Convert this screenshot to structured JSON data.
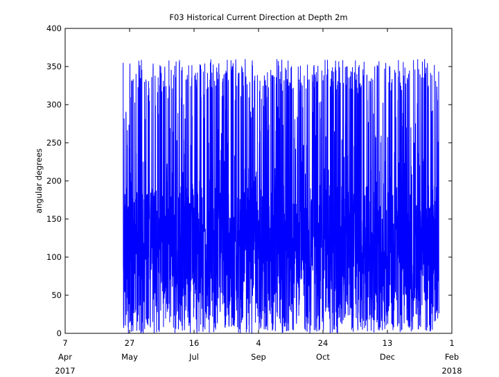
{
  "chart_data": {
    "type": "line",
    "title": "F03 Historical Current Direction at Depth 2m",
    "xlabel": "",
    "ylabel": "angular degrees",
    "ylim": [
      0,
      400
    ],
    "yticks": [
      0,
      50,
      100,
      150,
      200,
      250,
      300,
      350,
      400
    ],
    "x_range": [
      "2017-04-07",
      "2018-02-01"
    ],
    "x_ticks": [
      {
        "date": "2017-04-07",
        "day": "7",
        "month": "Apr",
        "year": "2017"
      },
      {
        "date": "2017-05-27",
        "day": "27",
        "month": "May",
        "year": ""
      },
      {
        "date": "2017-07-16",
        "day": "16",
        "month": "Jul",
        "year": ""
      },
      {
        "date": "2017-09-04",
        "day": "4",
        "month": "Sep",
        "year": ""
      },
      {
        "date": "2017-10-24",
        "day": "24",
        "month": "Oct",
        "year": ""
      },
      {
        "date": "2017-12-13",
        "day": "13",
        "month": "Dec",
        "year": ""
      },
      {
        "date": "2018-02-01",
        "day": "1",
        "month": "Feb",
        "year": "2018"
      }
    ],
    "grid": false,
    "series": [
      {
        "color": "#0000ff",
        "data_start": "2017-05-22",
        "data_end": "2018-01-22",
        "value_range": [
          0,
          360
        ],
        "core_band": [
          15,
          195
        ],
        "typical_center": 160
      }
    ]
  }
}
